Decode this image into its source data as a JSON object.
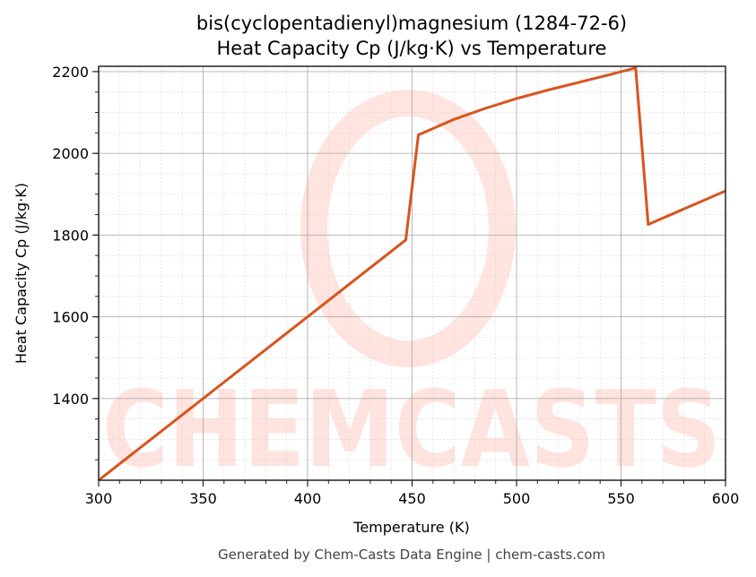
{
  "chart_data": {
    "type": "line",
    "title": "bis(cyclopentadienyl)magnesium (1284-72-6)",
    "subtitle": "Heat Capacity Cp (J/kg·K) vs Temperature",
    "xlabel": "Temperature (K)",
    "ylabel": "Heat Capacity Cp (J/kg·K)",
    "xlim": [
      300,
      600
    ],
    "ylim": [
      1200,
      2213
    ],
    "xticks": [
      300,
      350,
      400,
      450,
      500,
      550,
      600
    ],
    "yticks": [
      1400,
      1600,
      1800,
      2000,
      2200
    ],
    "grid": true,
    "legend": null,
    "series": [
      {
        "name": "Cp",
        "color": "#d9541e",
        "x": [
          300,
          350,
          400,
          447,
          453,
          470,
          485,
          500,
          515,
          530,
          545,
          557,
          563,
          600
        ],
        "y": [
          1200,
          1400,
          1600,
          1788,
          2045,
          2083,
          2110,
          2134,
          2155,
          2174,
          2193,
          2209,
          1826,
          1908
        ]
      }
    ],
    "watermark": "CHEMCASTS",
    "footer": "Generated by Chem-Casts Data Engine | chem-casts.com"
  }
}
